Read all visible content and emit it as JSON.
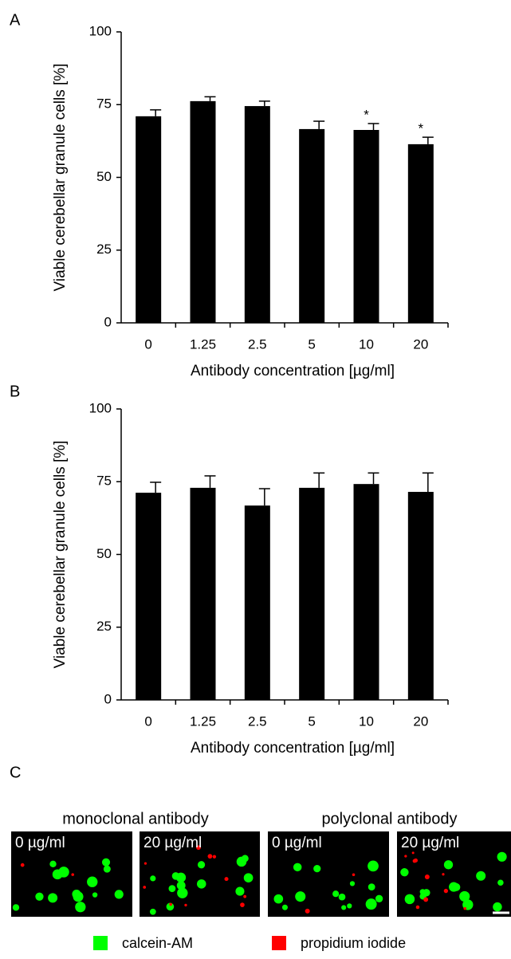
{
  "panel_labels": [
    "A",
    "B",
    "C"
  ],
  "chart_data": [
    {
      "type": "bar",
      "y_label": "Viable cerebellar granule cells [%]",
      "x_label": "Antibody concentration [µg/ml]",
      "categories": [
        "0",
        "1.25",
        "2.5",
        "5",
        "10",
        "20"
      ],
      "values": [
        71,
        76.2,
        74.5,
        66.6,
        66.3,
        61.4
      ],
      "errors": [
        2.2,
        1.5,
        1.7,
        2.7,
        2.2,
        2.4
      ],
      "significance": [
        null,
        null,
        null,
        null,
        "*",
        "*"
      ],
      "color": "#000000",
      "ylim": [
        0,
        100
      ],
      "yticks": [
        0,
        25,
        50,
        75,
        100
      ]
    },
    {
      "type": "bar",
      "y_label": "Viable cerebellar granule cells [%]",
      "x_label": "Antibody concentration [µg/ml]",
      "categories": [
        "0",
        "1.25",
        "2.5",
        "5",
        "10",
        "20"
      ],
      "values": [
        71.2,
        72.9,
        66.8,
        72.9,
        74.2,
        71.5
      ],
      "errors": [
        3.6,
        4.1,
        5.8,
        5.1,
        3.8,
        6.5
      ],
      "color": "#000000",
      "ylim": [
        0,
        100
      ],
      "yticks": [
        0,
        25,
        50,
        75,
        100
      ]
    }
  ],
  "images_panel": {
    "groups": [
      {
        "title": "monoclonal antibody",
        "images": [
          "0 µg/ml",
          "20 µg/ml"
        ]
      },
      {
        "title": "polyclonal antibody",
        "images": [
          "0 µg/ml",
          "20 µg/ml"
        ]
      }
    ],
    "legend": [
      {
        "label": "calcein-AM",
        "color": "#00ff00"
      },
      {
        "label": "propidium iodide",
        "color": "#ff0000"
      }
    ]
  }
}
